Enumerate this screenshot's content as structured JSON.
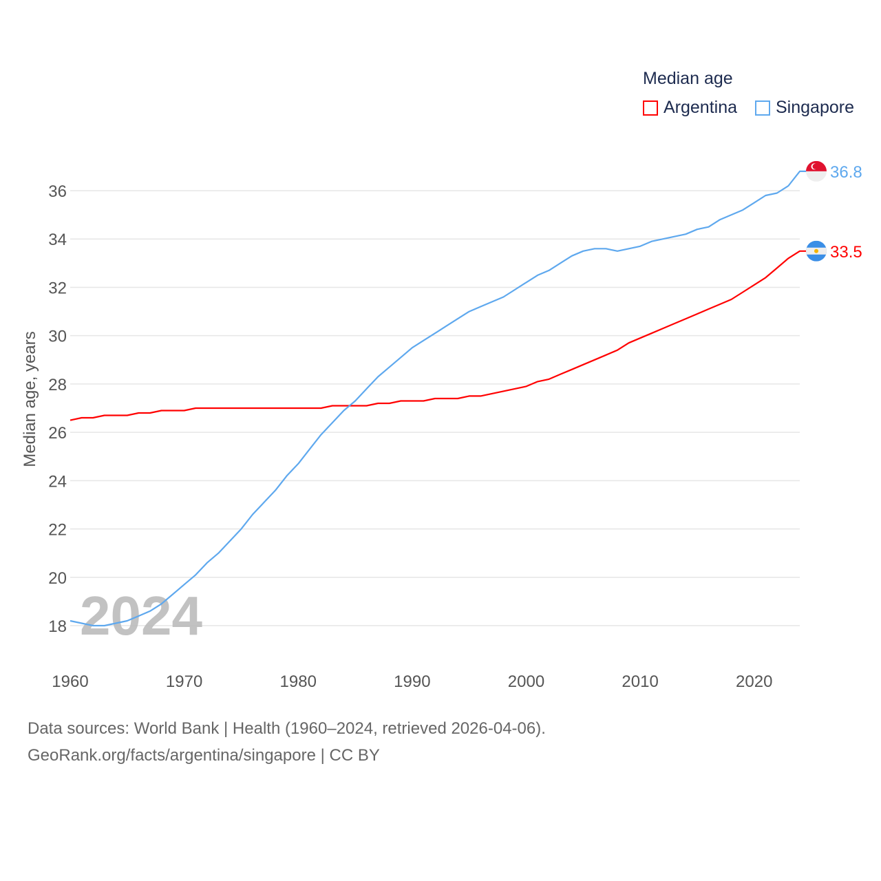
{
  "legend": {
    "title": "Median age",
    "items": [
      {
        "name": "Argentina",
        "color": "#ff0000"
      },
      {
        "name": "Singapore",
        "color": "#5ea8ee"
      }
    ]
  },
  "year_watermark": "2024",
  "footer": {
    "line1": "Data sources: World Bank | Health (1960–2024, retrieved 2026-04-06).",
    "line2": "GeoRank.org/facts/argentina/singapore | CC BY"
  },
  "chart_data": {
    "type": "line",
    "title": "Median age",
    "xlabel": "",
    "ylabel": "Median age, years",
    "xlim": [
      1960,
      2024
    ],
    "ylim": [
      17,
      37
    ],
    "xticks": [
      1960,
      1970,
      1980,
      1990,
      2000,
      2010,
      2020
    ],
    "yticks": [
      18,
      20,
      22,
      24,
      26,
      28,
      30,
      32,
      34,
      36
    ],
    "grid": true,
    "legend_position": "top-right",
    "x_start": 1960,
    "series": [
      {
        "name": "Argentina",
        "color": "#ff0000",
        "end_label": "33.5",
        "flag": "argentina-flag",
        "values": [
          26.5,
          26.6,
          26.6,
          26.7,
          26.7,
          26.7,
          26.8,
          26.8,
          26.9,
          26.9,
          26.9,
          27.0,
          27.0,
          27.0,
          27.0,
          27.0,
          27.0,
          27.0,
          27.0,
          27.0,
          27.0,
          27.0,
          27.0,
          27.1,
          27.1,
          27.1,
          27.1,
          27.2,
          27.2,
          27.3,
          27.3,
          27.3,
          27.4,
          27.4,
          27.4,
          27.5,
          27.5,
          27.6,
          27.7,
          27.8,
          27.9,
          28.1,
          28.2,
          28.4,
          28.6,
          28.8,
          29.0,
          29.2,
          29.4,
          29.7,
          29.9,
          30.1,
          30.3,
          30.5,
          30.7,
          30.9,
          31.1,
          31.3,
          31.5,
          31.8,
          32.1,
          32.4,
          32.8,
          33.2,
          33.5
        ]
      },
      {
        "name": "Singapore",
        "color": "#5ea8ee",
        "end_label": "36.8",
        "flag": "singapore-flag",
        "values": [
          18.2,
          18.1,
          18.0,
          18.0,
          18.1,
          18.2,
          18.4,
          18.6,
          18.9,
          19.3,
          19.7,
          20.1,
          20.6,
          21.0,
          21.5,
          22.0,
          22.6,
          23.1,
          23.6,
          24.2,
          24.7,
          25.3,
          25.9,
          26.4,
          26.9,
          27.3,
          27.8,
          28.3,
          28.7,
          29.1,
          29.5,
          29.8,
          30.1,
          30.4,
          30.7,
          31.0,
          31.2,
          31.4,
          31.6,
          31.9,
          32.2,
          32.5,
          32.7,
          33.0,
          33.3,
          33.5,
          33.6,
          33.6,
          33.5,
          33.6,
          33.7,
          33.9,
          34.0,
          34.1,
          34.2,
          34.4,
          34.5,
          34.8,
          35.0,
          35.2,
          35.5,
          35.8,
          35.9,
          36.2,
          36.8
        ]
      }
    ]
  }
}
